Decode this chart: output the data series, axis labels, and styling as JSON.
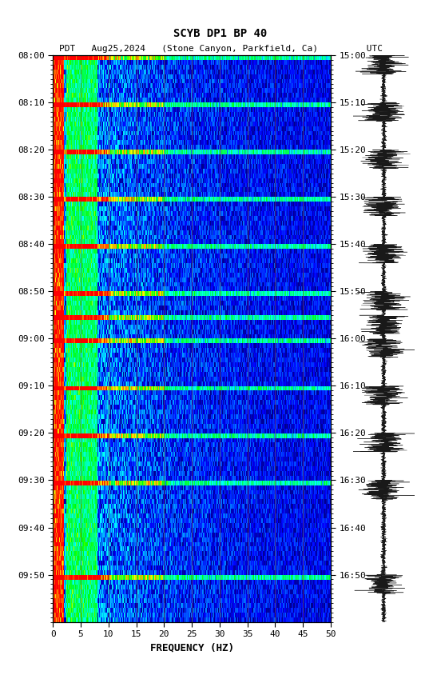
{
  "title_line1": "SCYB DP1 BP 40",
  "title_line2": "PDT   Aug25,2024   (Stone Canyon, Parkfield, Ca)         UTC",
  "xlabel": "FREQUENCY (HZ)",
  "freq_min": 0,
  "freq_max": 50,
  "freq_ticks": [
    0,
    5,
    10,
    15,
    20,
    25,
    30,
    35,
    40,
    45,
    50
  ],
  "freq_grid_lines": [
    5,
    10,
    15,
    20,
    25,
    30,
    35,
    40,
    45
  ],
  "left_time_labels": [
    "08:00",
    "08:10",
    "08:20",
    "08:30",
    "08:40",
    "08:50",
    "09:00",
    "09:10",
    "09:20",
    "09:30",
    "09:40",
    "09:50"
  ],
  "right_time_labels": [
    "15:00",
    "15:10",
    "15:20",
    "15:30",
    "15:40",
    "15:50",
    "16:00",
    "16:10",
    "16:20",
    "16:30",
    "16:40",
    "16:50"
  ],
  "n_time_steps": 120,
  "background_color": "#ffffff",
  "spectrogram_bg": "#00008B",
  "hot_band_rows": [
    0,
    10,
    20,
    30,
    40,
    50,
    55,
    60,
    70,
    80,
    90,
    110
  ],
  "waveform_color": "#000000",
  "fig_width": 5.52,
  "fig_height": 8.64
}
